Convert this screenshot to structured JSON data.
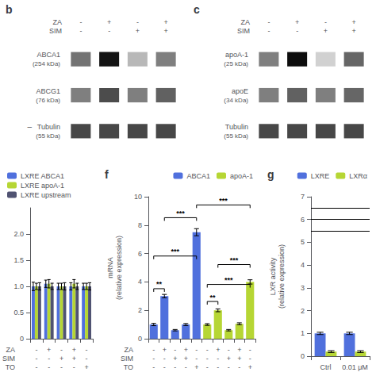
{
  "chart_data": [
    {
      "type": "heatmap",
      "title": "b",
      "color": "#000000",
      "categories": [
        "-\n-",
        "+\n-",
        "-\n+",
        "+\n+"
      ],
      "xlabel": "ZA\nSIM",
      "series": [
        {
          "name": "ABCA1\n(254 kDa)",
          "values": [
            0.55,
            0.92,
            0.28,
            0.5
          ]
        },
        {
          "name": "ABCG1\n(76 kDa)",
          "values": [
            0.5,
            0.7,
            0.5,
            0.62
          ]
        },
        {
          "name": "Tubulin\n(55 kDa)",
          "values": [
            0.72,
            0.72,
            0.72,
            0.72
          ]
        }
      ],
      "annotations": [
        {
          "row": 2,
          "text": "–"
        }
      ]
    },
    {
      "type": "heatmap",
      "title": "c",
      "color": "#000000",
      "categories": [
        "-\n-",
        "+\n-",
        "-\n+",
        "+\n+"
      ],
      "xlabel": "ZA\nSIM",
      "series": [
        {
          "name": "apoA-1\n(25 kDa)",
          "values": [
            0.5,
            0.95,
            0.18,
            0.6
          ]
        },
        {
          "name": "apoE\n(34 kDa)",
          "values": [
            0.5,
            0.62,
            0.5,
            0.6
          ]
        },
        {
          "name": "Tubulin\n(55 kDa)",
          "values": [
            0.72,
            0.72,
            0.72,
            0.72
          ]
        }
      ]
    },
    {
      "type": "bar",
      "categories": [
        "-\n-\n-",
        "+\n-\n-",
        "-\n+\n-",
        "+\n+\n-",
        "-\n-\n+"
      ],
      "xlabel": "ZA\nSIM\nTO",
      "series": [
        {
          "name": "LXRE ABCA1",
          "values": [
            1.0,
            1.05,
            1.0,
            1.0,
            1.0
          ],
          "errors": [
            0.08,
            0.07,
            0.06,
            0.07,
            0.06
          ]
        },
        {
          "name": "LXRE apoA-1",
          "values": [
            1.0,
            1.05,
            1.0,
            1.05,
            1.0
          ],
          "errors": [
            0.06,
            0.08,
            0.06,
            0.08,
            0.06
          ]
        },
        {
          "name": "LXRE upstream",
          "values": [
            1.0,
            1.0,
            1.0,
            1.0,
            1.0
          ],
          "errors": [
            0.07,
            0.06,
            0.07,
            0.06,
            0.07
          ]
        }
      ],
      "ylim": [
        0,
        2.5
      ],
      "yticks": [
        0,
        0.5,
        {
          "value": 1,
          "label": "1.0"
        },
        1.5,
        {
          "value": 2,
          "label": "2.0"
        }
      ],
      "grid": false,
      "legend": "upper left"
    },
    {
      "type": "bar",
      "title": "f",
      "categories": [
        "-\n-\n-",
        "+\n-\n-",
        "-\n+\n-",
        "+\n+\n-",
        "-\n-\n+",
        "-\n-\n-",
        "+\n-\n-",
        "-\n+\n-",
        "+\n+\n-",
        "-\n-\n+"
      ],
      "xlabel": "ZA\nSIM\nTO",
      "ylabel": "mRNA\n(relative expression)",
      "series": [
        {
          "name": "ABCA1",
          "values": [
            1.0,
            3.0,
            0.6,
            1.0,
            7.5,
            null,
            null,
            null,
            null,
            null
          ],
          "errors": [
            0.08,
            0.12,
            0.05,
            0.07,
            0.25,
            null,
            null,
            null,
            null,
            null
          ]
        },
        {
          "name": "apoA-1",
          "values": [
            null,
            null,
            null,
            null,
            null,
            1.0,
            2.0,
            0.6,
            1.05,
            4.0
          ],
          "errors": [
            null,
            null,
            null,
            null,
            null,
            0.06,
            0.1,
            0.05,
            0.07,
            0.15
          ]
        }
      ],
      "ylim": [
        0,
        10
      ],
      "yticks": [
        0,
        2,
        4,
        6,
        8,
        10
      ],
      "grid": false,
      "legend": "upper right",
      "annotations": [
        {
          "x": [
            0,
            1
          ],
          "y": 3.3,
          "text": "**"
        },
        {
          "x": [
            0,
            4
          ],
          "y": 5.6,
          "text": "***"
        },
        {
          "x": [
            1,
            4
          ],
          "y": 8.3,
          "text": "***"
        },
        {
          "x": [
            4,
            9
          ],
          "y": 9.2,
          "text": "***"
        },
        {
          "x": [
            5,
            6
          ],
          "y": 2.4,
          "text": "**"
        },
        {
          "x": [
            5,
            9
          ],
          "y": 3.6,
          "text": "***"
        },
        {
          "x": [
            6,
            9
          ],
          "y": 5.0,
          "text": "***"
        }
      ]
    },
    {
      "type": "bar",
      "title": "g",
      "categories": [
        "Ctrl",
        "0.01 μM"
      ],
      "ylabel": "LXR activity\n(relative expression)",
      "series": [
        {
          "name": "LXRE",
          "values": [
            1.0,
            1.0
          ],
          "errors": [
            0.05,
            0.05
          ]
        },
        {
          "name": "LXRα",
          "values": [
            0.2,
            0.2
          ],
          "errors": [
            0.04,
            0.04
          ]
        }
      ],
      "ylim": [
        0,
        7
      ],
      "yticks": [
        0,
        1,
        2,
        3,
        4,
        5,
        6,
        7
      ],
      "grid": false,
      "legend": "upper right",
      "annotations": [
        {
          "y": 5.5
        },
        {
          "y": 6.0
        },
        {
          "y": 6.5
        }
      ]
    }
  ]
}
